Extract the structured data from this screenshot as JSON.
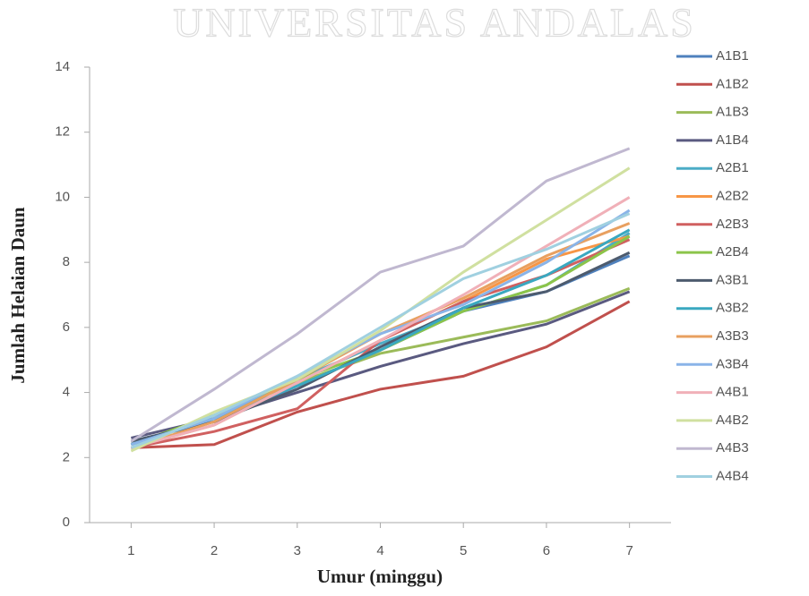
{
  "chart_data": {
    "type": "line",
    "watermark": "UNIVERSITAS ANDALAS",
    "x_label": "Umur (minggu)",
    "y_label": "Jumlah Helaian Daun",
    "x": [
      1,
      2,
      3,
      4,
      5,
      6,
      7
    ],
    "xlim": [
      0.5,
      7.5
    ],
    "xticks": [
      1,
      2,
      3,
      4,
      5,
      6,
      7
    ],
    "ylim": [
      0,
      14
    ],
    "yticks": [
      0,
      2,
      4,
      6,
      8,
      10,
      12,
      14
    ],
    "grid": false,
    "legend": "right",
    "series": [
      {
        "name": "A1B1",
        "color": "#4f81bd",
        "values": [
          2.5,
          3.1,
          4.2,
          5.3,
          6.5,
          7.1,
          8.2
        ]
      },
      {
        "name": "A1B2",
        "color": "#c0504d",
        "values": [
          2.3,
          2.4,
          3.4,
          4.1,
          4.5,
          5.4,
          6.8
        ]
      },
      {
        "name": "A1B3",
        "color": "#9bbb59",
        "values": [
          2.4,
          3.3,
          4.3,
          5.2,
          5.7,
          6.2,
          7.2
        ]
      },
      {
        "name": "A1B4",
        "color": "#5a5a80",
        "values": [
          2.6,
          3.2,
          4.0,
          4.8,
          5.5,
          6.1,
          7.1
        ]
      },
      {
        "name": "A2B1",
        "color": "#4bacc6",
        "values": [
          2.4,
          3.2,
          4.4,
          5.5,
          6.5,
          7.3,
          8.9
        ]
      },
      {
        "name": "A2B2",
        "color": "#f79646",
        "values": [
          2.3,
          3.0,
          4.3,
          5.6,
          6.8,
          8.1,
          8.8
        ]
      },
      {
        "name": "A2B3",
        "color": "#d06060",
        "values": [
          2.3,
          2.8,
          3.5,
          5.6,
          6.8,
          7.6,
          8.7
        ]
      },
      {
        "name": "A2B4",
        "color": "#8cc44a",
        "values": [
          2.4,
          3.3,
          4.4,
          5.3,
          6.5,
          7.3,
          8.8
        ]
      },
      {
        "name": "A3B1",
        "color": "#4d5b6e",
        "values": [
          2.5,
          3.1,
          4.1,
          5.4,
          6.6,
          7.1,
          8.3
        ]
      },
      {
        "name": "A3B2",
        "color": "#3aa8c0",
        "values": [
          2.4,
          3.2,
          4.2,
          5.3,
          6.6,
          7.6,
          9.0
        ]
      },
      {
        "name": "A3B3",
        "color": "#e8a060",
        "values": [
          2.3,
          3.1,
          4.4,
          5.8,
          6.9,
          8.2,
          9.2
        ]
      },
      {
        "name": "A3B4",
        "color": "#8ab4e8",
        "values": [
          2.4,
          3.2,
          4.5,
          5.8,
          6.7,
          8.0,
          9.6
        ]
      },
      {
        "name": "A4B1",
        "color": "#f0b0b8",
        "values": [
          2.3,
          3.0,
          4.3,
          5.6,
          7.0,
          8.5,
          10.0
        ]
      },
      {
        "name": "A4B2",
        "color": "#d0e0a0",
        "values": [
          2.2,
          3.4,
          4.4,
          5.9,
          7.7,
          9.3,
          10.9
        ]
      },
      {
        "name": "A4B3",
        "color": "#c0b8d0",
        "values": [
          2.5,
          4.1,
          5.8,
          7.7,
          8.5,
          10.5,
          11.5
        ]
      },
      {
        "name": "A4B4",
        "color": "#a0d0e0",
        "values": [
          2.3,
          3.3,
          4.5,
          6.0,
          7.5,
          8.4,
          9.5
        ]
      }
    ]
  }
}
